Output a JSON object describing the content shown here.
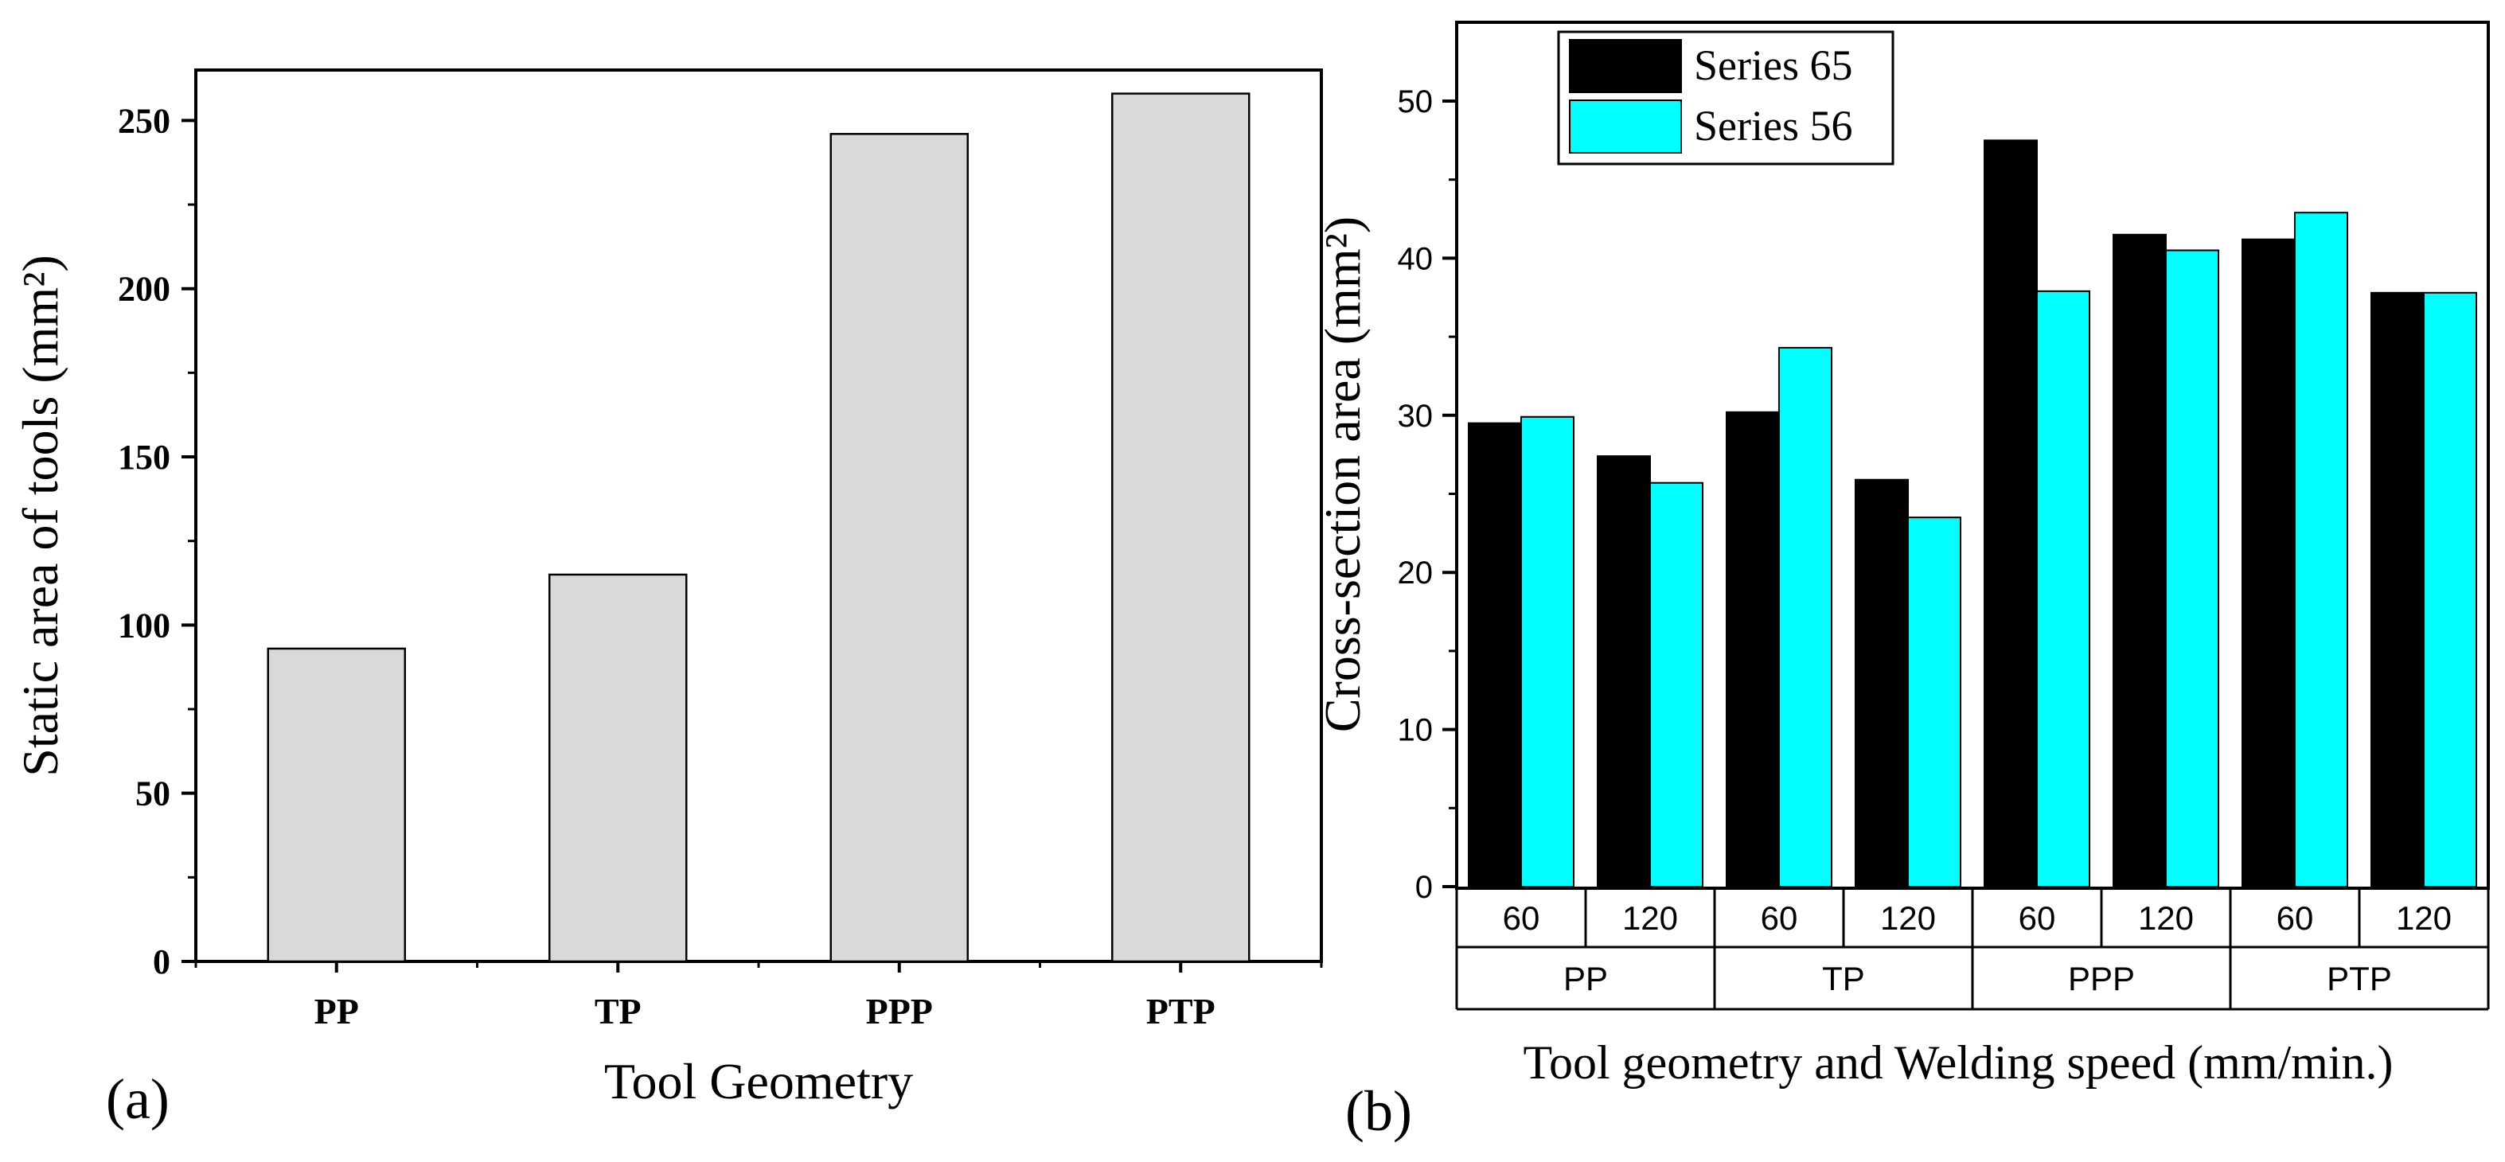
{
  "chart_data": [
    {
      "type": "bar",
      "panel_label": "(a)",
      "categories": [
        "PP",
        "TP",
        "PPP",
        "PTP"
      ],
      "values": [
        93,
        115,
        246,
        258
      ],
      "xlabel": "Tool Geometry",
      "ylabel": "Static area of tools (mm²)",
      "ylim": [
        0,
        265
      ],
      "yticks": [
        0,
        50,
        100,
        150,
        200,
        250
      ],
      "bar_color": "#d9d9d9",
      "grid": false
    },
    {
      "type": "bar",
      "panel_label": "(b)",
      "groups": [
        "PP",
        "TP",
        "PPP",
        "PTP"
      ],
      "speeds": [
        "60",
        "120",
        "60",
        "120",
        "60",
        "120",
        "60",
        "120"
      ],
      "series": [
        {
          "name": "Series 65",
          "color": "#000000",
          "values": [
            29.5,
            27.4,
            30.2,
            25.9,
            47.5,
            41.5,
            41.2,
            37.8
          ]
        },
        {
          "name": "Series 56",
          "color": "#00ffff",
          "values": [
            29.9,
            25.7,
            34.3,
            23.5,
            37.9,
            40.5,
            42.9,
            37.8
          ]
        }
      ],
      "xlabel": "Tool geometry and Welding speed (mm/min.)",
      "ylabel": "Cross-section  area  (mm²)",
      "ylim": [
        0,
        55
      ],
      "yticks": [
        0,
        10,
        20,
        30,
        40,
        50
      ],
      "legend": "top-left",
      "grid": false
    }
  ]
}
